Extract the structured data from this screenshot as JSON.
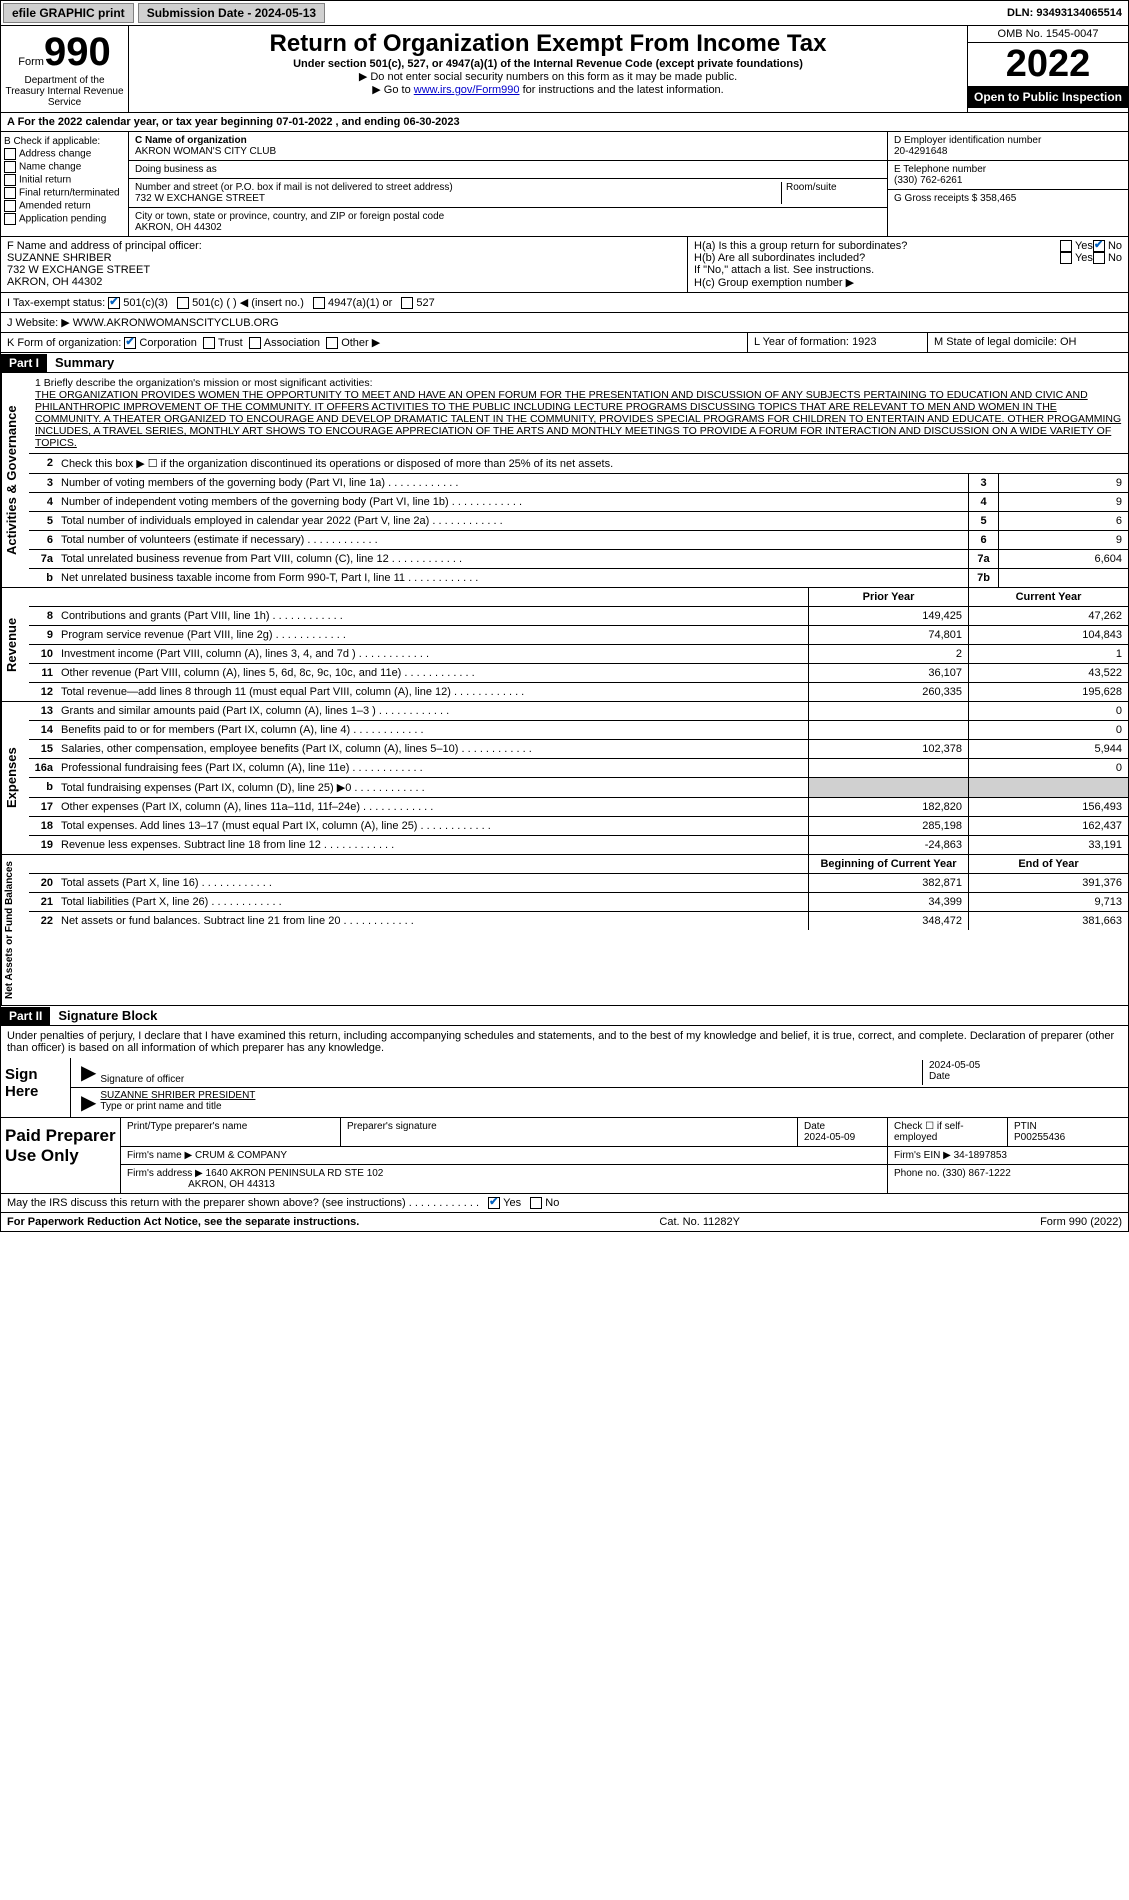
{
  "topbar": {
    "efile": "efile GRAPHIC print",
    "submission_label": "Submission Date - 2024-05-13",
    "dln": "DLN: 93493134065514"
  },
  "header": {
    "form_word": "Form",
    "form_num": "990",
    "dept": "Department of the Treasury Internal Revenue Service",
    "title": "Return of Organization Exempt From Income Tax",
    "sub": "Under section 501(c), 527, or 4947(a)(1) of the Internal Revenue Code (except private foundations)",
    "note1": "▶ Do not enter social security numbers on this form as it may be made public.",
    "note2_pre": "▶ Go to ",
    "note2_link": "www.irs.gov/Form990",
    "note2_post": " for instructions and the latest information.",
    "omb": "OMB No. 1545-0047",
    "year": "2022",
    "open": "Open to Public Inspection"
  },
  "line_a": {
    "text_pre": "A For the 2022 calendar year, or tax year beginning ",
    "begin": "07-01-2022",
    "mid": " , and ending ",
    "end": "06-30-2023"
  },
  "box_b": {
    "hdr": "B Check if applicable:",
    "items": [
      "Address change",
      "Name change",
      "Initial return",
      "Final return/terminated",
      "Amended return",
      "Application pending"
    ]
  },
  "box_c": {
    "name_lbl": "C Name of organization",
    "name": "AKRON WOMAN'S CITY CLUB",
    "dba_lbl": "Doing business as",
    "dba": "",
    "addr_lbl": "Number and street (or P.O. box if mail is not delivered to street address)",
    "addr": "732 W EXCHANGE STREET",
    "room_lbl": "Room/suite",
    "city_lbl": "City or town, state or province, country, and ZIP or foreign postal code",
    "city": "AKRON, OH  44302"
  },
  "box_d": {
    "ein_lbl": "D Employer identification number",
    "ein": "20-4291648",
    "tel_lbl": "E Telephone number",
    "tel": "(330) 762-6261",
    "gross_lbl": "G Gross receipts $",
    "gross": "358,465"
  },
  "box_f": {
    "lbl": "F  Name and address of principal officer:",
    "name": "SUZANNE SHRIBER",
    "addr1": "732 W EXCHANGE STREET",
    "addr2": "AKRON, OH  44302"
  },
  "box_h": {
    "ha": "H(a)  Is this a group return for subordinates?",
    "hb": "H(b)  Are all subordinates included?",
    "hb_note": "If \"No,\" attach a list. See instructions.",
    "hc": "H(c)  Group exemption number ▶",
    "yes": "Yes",
    "no": "No"
  },
  "box_i": {
    "lbl": "I   Tax-exempt status:",
    "opts": [
      "501(c)(3)",
      "501(c) (  ) ◀ (insert no.)",
      "4947(a)(1) or",
      "527"
    ]
  },
  "box_j": {
    "lbl": "J   Website: ▶",
    "val": "WWW.AKRONWOMANSCITYCLUB.ORG"
  },
  "box_k": {
    "lbl": "K Form of organization:",
    "opts": [
      "Corporation",
      "Trust",
      "Association",
      "Other ▶"
    ]
  },
  "box_l": {
    "lbl": "L Year of formation:",
    "val": "1923"
  },
  "box_m": {
    "lbl": "M State of legal domicile:",
    "val": "OH"
  },
  "part1": {
    "hdr": "Part I",
    "title": "Summary"
  },
  "mission": {
    "lbl": "1   Briefly describe the organization's mission or most significant activities:",
    "text": "THE ORGANIZATION PROVIDES WOMEN THE OPPORTUNITY TO MEET AND HAVE AN OPEN FORUM FOR THE PRESENTATION AND DISCUSSION OF ANY SUBJECTS PERTAINING TO EDUCATION AND CIVIC AND PHILANTHROPIC IMPROVEMENT OF THE COMMUNITY. IT OFFERS ACTIVITIES TO THE PUBLIC INCLUDING LECTURE PROGRAMS DISCUSSING TOPICS THAT ARE RELEVANT TO MEN AND WOMEN IN THE COMMUNITY. A THEATER ORGANIZED TO ENCOURAGE AND DEVELOP DRAMATIC TALENT IN THE COMMUNITY, PROVIDES SPECIAL PROGRAMS FOR CHILDREN TO ENTERTAIN AND EDUCATE. OTHER PROGAMMING INCLUDES, A TRAVEL SERIES, MONTHLY ART SHOWS TO ENCOURAGE APPRECIATION OF THE ARTS AND MONTHLY MEETINGS TO PROVIDE A FORUM FOR INTERACTION AND DISCUSSION ON A WIDE VARIETY OF TOPICS."
  },
  "gov_rows": [
    {
      "n": "2",
      "desc": "Check this box ▶ ☐ if the organization discontinued its operations or disposed of more than 25% of its net assets.",
      "box": "",
      "val": ""
    },
    {
      "n": "3",
      "desc": "Number of voting members of the governing body (Part VI, line 1a)",
      "box": "3",
      "val": "9"
    },
    {
      "n": "4",
      "desc": "Number of independent voting members of the governing body (Part VI, line 1b)",
      "box": "4",
      "val": "9"
    },
    {
      "n": "5",
      "desc": "Total number of individuals employed in calendar year 2022 (Part V, line 2a)",
      "box": "5",
      "val": "6"
    },
    {
      "n": "6",
      "desc": "Total number of volunteers (estimate if necessary)",
      "box": "6",
      "val": "9"
    },
    {
      "n": "7a",
      "desc": "Total unrelated business revenue from Part VIII, column (C), line 12",
      "box": "7a",
      "val": "6,604"
    },
    {
      "n": "b",
      "desc": "Net unrelated business taxable income from Form 990-T, Part I, line 11",
      "box": "7b",
      "val": ""
    }
  ],
  "two_col_hdr": {
    "prior": "Prior Year",
    "current": "Current Year"
  },
  "revenue_rows": [
    {
      "n": "8",
      "desc": "Contributions and grants (Part VIII, line 1h)",
      "prior": "149,425",
      "current": "47,262"
    },
    {
      "n": "9",
      "desc": "Program service revenue (Part VIII, line 2g)",
      "prior": "74,801",
      "current": "104,843"
    },
    {
      "n": "10",
      "desc": "Investment income (Part VIII, column (A), lines 3, 4, and 7d )",
      "prior": "2",
      "current": "1"
    },
    {
      "n": "11",
      "desc": "Other revenue (Part VIII, column (A), lines 5, 6d, 8c, 9c, 10c, and 11e)",
      "prior": "36,107",
      "current": "43,522"
    },
    {
      "n": "12",
      "desc": "Total revenue—add lines 8 through 11 (must equal Part VIII, column (A), line 12)",
      "prior": "260,335",
      "current": "195,628"
    }
  ],
  "expense_rows": [
    {
      "n": "13",
      "desc": "Grants and similar amounts paid (Part IX, column (A), lines 1–3 )",
      "prior": "",
      "current": "0"
    },
    {
      "n": "14",
      "desc": "Benefits paid to or for members (Part IX, column (A), line 4)",
      "prior": "",
      "current": "0"
    },
    {
      "n": "15",
      "desc": "Salaries, other compensation, employee benefits (Part IX, column (A), lines 5–10)",
      "prior": "102,378",
      "current": "5,944"
    },
    {
      "n": "16a",
      "desc": "Professional fundraising fees (Part IX, column (A), line 11e)",
      "prior": "",
      "current": "0"
    },
    {
      "n": "b",
      "desc": "Total fundraising expenses (Part IX, column (D), line 25) ▶0",
      "prior": "shade",
      "current": "shade"
    },
    {
      "n": "17",
      "desc": "Other expenses (Part IX, column (A), lines 11a–11d, 11f–24e)",
      "prior": "182,820",
      "current": "156,493"
    },
    {
      "n": "18",
      "desc": "Total expenses. Add lines 13–17 (must equal Part IX, column (A), line 25)",
      "prior": "285,198",
      "current": "162,437"
    },
    {
      "n": "19",
      "desc": "Revenue less expenses. Subtract line 18 from line 12",
      "prior": "-24,863",
      "current": "33,191"
    }
  ],
  "net_hdr": {
    "begin": "Beginning of Current Year",
    "end": "End of Year"
  },
  "net_rows": [
    {
      "n": "20",
      "desc": "Total assets (Part X, line 16)",
      "prior": "382,871",
      "current": "391,376"
    },
    {
      "n": "21",
      "desc": "Total liabilities (Part X, line 26)",
      "prior": "34,399",
      "current": "9,713"
    },
    {
      "n": "22",
      "desc": "Net assets or fund balances. Subtract line 21 from line 20",
      "prior": "348,472",
      "current": "381,663"
    }
  ],
  "sides": {
    "gov": "Activities & Governance",
    "rev": "Revenue",
    "exp": "Expenses",
    "net": "Net Assets or Fund Balances"
  },
  "part2": {
    "hdr": "Part II",
    "title": "Signature Block"
  },
  "sig": {
    "perjury": "Under penalties of perjury, I declare that I have examined this return, including accompanying schedules and statements, and to the best of my knowledge and belief, it is true, correct, and complete. Declaration of preparer (other than officer) is based on all information of which preparer has any knowledge.",
    "sign_here": "Sign Here",
    "sig_officer": "Signature of officer",
    "date_lbl": "Date",
    "date": "2024-05-05",
    "name": "SUZANNE SHRIBER  PRESIDENT",
    "name_lbl": "Type or print name and title"
  },
  "prep": {
    "hdr": "Paid Preparer Use Only",
    "name_lbl": "Print/Type preparer's name",
    "sig_lbl": "Preparer's signature",
    "date_lbl": "Date",
    "date": "2024-05-09",
    "self_lbl": "Check ☐ if self-employed",
    "ptin_lbl": "PTIN",
    "ptin": "P00255436",
    "firm_name_lbl": "Firm's name    ▶",
    "firm_name": "CRUM & COMPANY",
    "firm_ein_lbl": "Firm's EIN ▶",
    "firm_ein": "34-1897853",
    "firm_addr_lbl": "Firm's address ▶",
    "firm_addr": "1640 AKRON PENINSULA RD STE 102",
    "firm_city": "AKRON, OH  44313",
    "phone_lbl": "Phone no.",
    "phone": "(330) 867-1222"
  },
  "discuss": {
    "text": "May the IRS discuss this return with the preparer shown above? (see instructions)",
    "yes": "Yes",
    "no": "No"
  },
  "footer": {
    "left": "For Paperwork Reduction Act Notice, see the separate instructions.",
    "cat": "Cat. No. 11282Y",
    "right": "Form 990 (2022)"
  }
}
